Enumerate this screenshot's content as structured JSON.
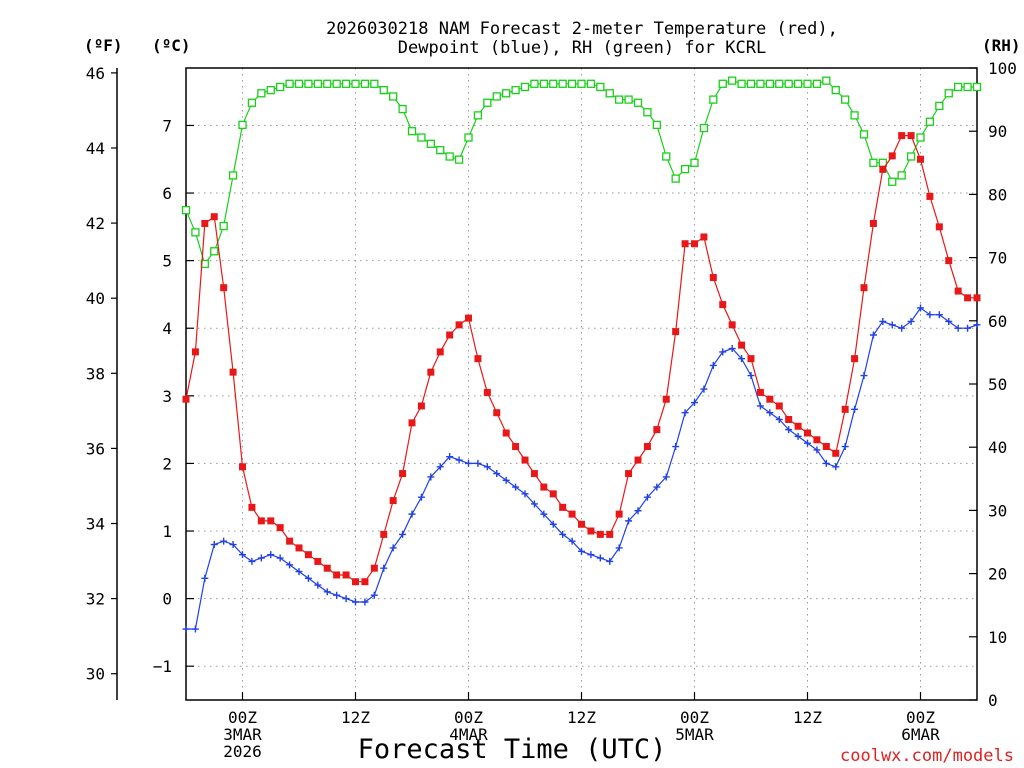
{
  "chart_data": {
    "type": "line",
    "title_lines": [
      "2026030218 NAM Forecast 2-meter Temperature (red),",
      "Dewpoint (blue), RH (green) for KCRL"
    ],
    "xlabel": "Forecast Time (UTC)",
    "credit": "coolwx.com/models",
    "units": {
      "fahrenheit": "(ºF)",
      "celsius": "(ºC)",
      "rh": "(RH)"
    },
    "x_unit": "forecast hour",
    "xlim": [
      0,
      84
    ],
    "ylim_celsius": [
      -1.5,
      7.85
    ],
    "ylim_rh": [
      0,
      100
    ],
    "celsius_ticks": [
      {
        "v": -1,
        "label": "−1"
      },
      {
        "v": 0,
        "label": "0"
      },
      {
        "v": 1,
        "label": "1"
      },
      {
        "v": 2,
        "label": "2"
      },
      {
        "v": 3,
        "label": "3"
      },
      {
        "v": 4,
        "label": "4"
      },
      {
        "v": 5,
        "label": "5"
      },
      {
        "v": 6,
        "label": "6"
      },
      {
        "v": 7,
        "label": "7"
      }
    ],
    "fahrenheit_ticks": [
      {
        "v": 30,
        "label": "30"
      },
      {
        "v": 32,
        "label": "32"
      },
      {
        "v": 34,
        "label": "34"
      },
      {
        "v": 36,
        "label": "36"
      },
      {
        "v": 38,
        "label": "38"
      },
      {
        "v": 40,
        "label": "40"
      },
      {
        "v": 42,
        "label": "42"
      },
      {
        "v": 44,
        "label": "44"
      },
      {
        "v": 46,
        "label": "46"
      }
    ],
    "rh_ticks": [
      {
        "v": 0,
        "label": "0"
      },
      {
        "v": 10,
        "label": "10"
      },
      {
        "v": 20,
        "label": "20"
      },
      {
        "v": 30,
        "label": "30"
      },
      {
        "v": 40,
        "label": "40"
      },
      {
        "v": 50,
        "label": "50"
      },
      {
        "v": 60,
        "label": "60"
      },
      {
        "v": 70,
        "label": "70"
      },
      {
        "v": 80,
        "label": "80"
      },
      {
        "v": 90,
        "label": "90"
      },
      {
        "v": 100,
        "label": "100"
      }
    ],
    "x_ticks": [
      {
        "hour": 6,
        "lines": [
          "00Z",
          "3MAR",
          "2026"
        ]
      },
      {
        "hour": 18,
        "lines": [
          "12Z"
        ]
      },
      {
        "hour": 30,
        "lines": [
          "00Z",
          "4MAR"
        ]
      },
      {
        "hour": 42,
        "lines": [
          "12Z"
        ]
      },
      {
        "hour": 54,
        "lines": [
          "00Z",
          "5MAR"
        ]
      },
      {
        "hour": 66,
        "lines": [
          "12Z"
        ]
      },
      {
        "hour": 78,
        "lines": [
          "00Z",
          "6MAR"
        ]
      }
    ],
    "series": [
      {
        "name": "Temperature",
        "unit": "C",
        "color": "#e81818",
        "marker": "filled-square",
        "values": [
          2.95,
          3.65,
          5.55,
          5.65,
          4.6,
          3.35,
          1.95,
          1.35,
          1.15,
          1.15,
          1.05,
          0.85,
          0.75,
          0.65,
          0.55,
          0.45,
          0.35,
          0.35,
          0.25,
          0.25,
          0.45,
          0.95,
          1.45,
          1.85,
          2.6,
          2.85,
          3.35,
          3.65,
          3.9,
          4.05,
          4.15,
          3.55,
          3.05,
          2.75,
          2.45,
          2.25,
          2.05,
          1.85,
          1.65,
          1.55,
          1.35,
          1.25,
          1.1,
          1.0,
          0.95,
          0.95,
          1.25,
          1.85,
          2.05,
          2.25,
          2.5,
          2.95,
          3.95,
          5.25,
          5.25,
          5.35,
          4.75,
          4.35,
          4.05,
          3.75,
          3.55,
          3.05,
          2.95,
          2.85,
          2.65,
          2.55,
          2.45,
          2.35,
          2.25,
          2.15,
          2.8,
          3.55,
          4.6,
          5.55,
          6.35,
          6.55,
          6.85,
          6.85,
          6.5,
          5.95,
          5.5,
          5.0,
          4.55,
          4.45,
          4.45
        ]
      },
      {
        "name": "Dewpoint",
        "unit": "C",
        "color": "#2040e8",
        "marker": "plus",
        "values": [
          -0.45,
          -0.45,
          0.3,
          0.8,
          0.85,
          0.8,
          0.65,
          0.55,
          0.6,
          0.65,
          0.6,
          0.5,
          0.4,
          0.3,
          0.2,
          0.1,
          0.05,
          0.0,
          -0.05,
          -0.05,
          0.05,
          0.45,
          0.75,
          0.95,
          1.25,
          1.5,
          1.8,
          1.95,
          2.1,
          2.05,
          2.0,
          2.0,
          1.95,
          1.85,
          1.75,
          1.65,
          1.55,
          1.4,
          1.25,
          1.1,
          0.95,
          0.85,
          0.7,
          0.65,
          0.6,
          0.55,
          0.75,
          1.15,
          1.3,
          1.5,
          1.65,
          1.8,
          2.25,
          2.75,
          2.9,
          3.1,
          3.45,
          3.65,
          3.7,
          3.55,
          3.3,
          2.85,
          2.75,
          2.65,
          2.5,
          2.4,
          2.3,
          2.2,
          2.0,
          1.95,
          2.25,
          2.8,
          3.3,
          3.9,
          4.1,
          4.05,
          4.0,
          4.1,
          4.3,
          4.2,
          4.2,
          4.1,
          4.0,
          4.0,
          4.05
        ]
      },
      {
        "name": "RH",
        "unit": "%",
        "color": "#18d018",
        "marker": "open-square",
        "values": [
          77.5,
          74,
          69,
          71,
          75,
          83,
          91,
          94.5,
          96,
          96.5,
          97,
          97.5,
          97.5,
          97.5,
          97.5,
          97.5,
          97.5,
          97.5,
          97.5,
          97.5,
          97.5,
          96.5,
          95.5,
          93.5,
          90,
          89,
          88,
          87,
          86,
          85.5,
          89,
          92.5,
          94.5,
          95.5,
          96,
          96.5,
          97,
          97.5,
          97.5,
          97.5,
          97.5,
          97.5,
          97.5,
          97.5,
          97,
          96,
          95,
          95,
          94.5,
          93,
          91,
          86,
          82.5,
          84,
          85,
          90.5,
          95,
          97.5,
          98,
          97.5,
          97.5,
          97.5,
          97.5,
          97.5,
          97.5,
          97.5,
          97.5,
          97.5,
          98,
          96.5,
          95,
          92.5,
          89.5,
          85,
          85,
          82,
          83,
          86,
          89,
          91.5,
          94,
          96,
          97,
          97,
          97
        ]
      }
    ]
  }
}
